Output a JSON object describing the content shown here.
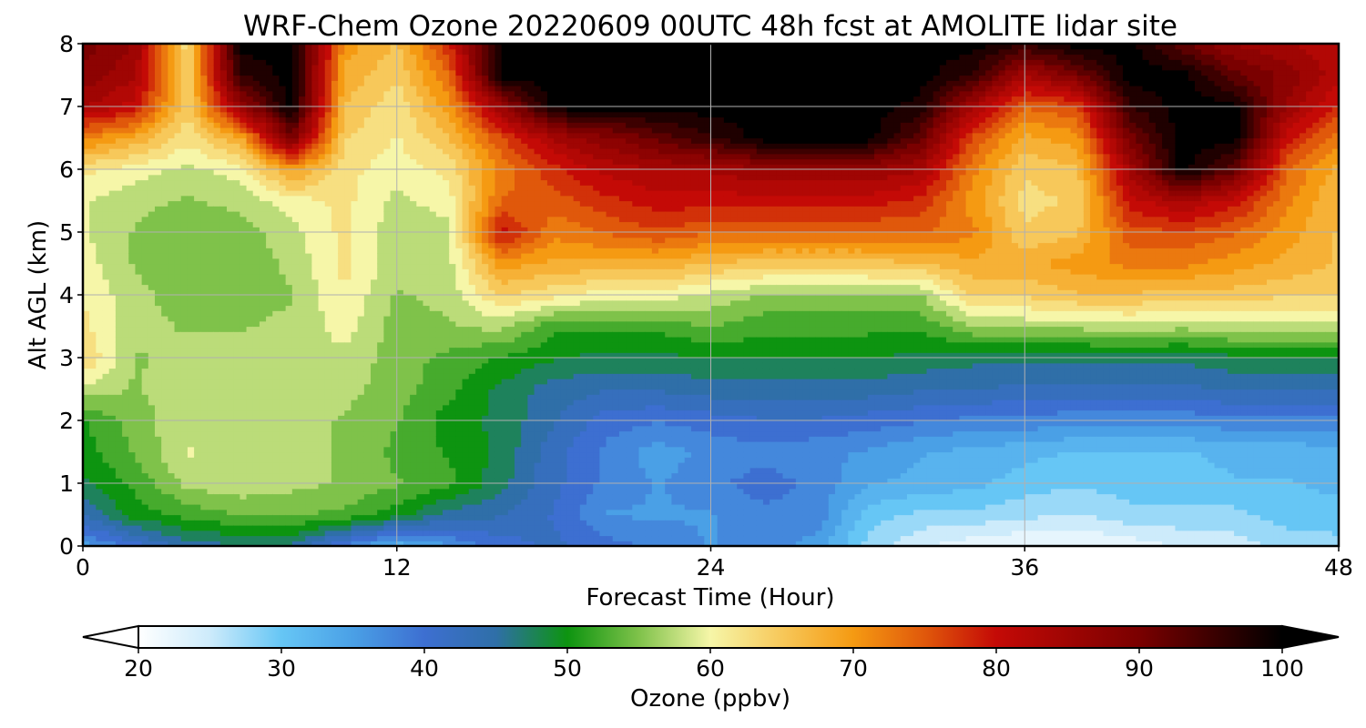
{
  "chart_data": {
    "type": "heatmap",
    "title": "WRF-Chem Ozone  20220609 00UTC 48h fcst at AMOLITE lidar site",
    "xlabel": "Forecast Time (Hour)",
    "ylabel": "Alt AGL (km)",
    "xlim": [
      0,
      48
    ],
    "ylim": [
      0,
      8
    ],
    "xticks": [
      0,
      12,
      24,
      36,
      48
    ],
    "yticks": [
      0,
      1,
      2,
      3,
      4,
      5,
      6,
      7,
      8
    ],
    "grid": true,
    "colorbar": {
      "label": "Ozone  (ppbv)",
      "range": [
        20,
        100
      ],
      "ticks": [
        20,
        30,
        40,
        50,
        60,
        70,
        80,
        90,
        100
      ],
      "extend": "both",
      "stops": [
        [
          20,
          "#ffffff"
        ],
        [
          25,
          "#cdebfb"
        ],
        [
          30,
          "#66c6f5"
        ],
        [
          35,
          "#4aa0e6"
        ],
        [
          40,
          "#3d6fd1"
        ],
        [
          45,
          "#2f6fa8"
        ],
        [
          50,
          "#0d9410"
        ],
        [
          55,
          "#7fc24a"
        ],
        [
          60,
          "#f6f6a8"
        ],
        [
          65,
          "#f7c85a"
        ],
        [
          70,
          "#f59a12"
        ],
        [
          75,
          "#e0580b"
        ],
        [
          80,
          "#c40a06"
        ],
        [
          90,
          "#7a0000"
        ],
        [
          100,
          "#000000"
        ]
      ]
    },
    "x_hours": [
      0,
      2,
      4,
      6,
      8,
      10,
      12,
      14,
      16,
      18,
      20,
      22,
      24,
      26,
      28,
      30,
      32,
      34,
      36,
      38,
      40,
      42,
      44,
      46,
      48
    ],
    "z_km": [
      0,
      0.5,
      1,
      1.5,
      2,
      2.5,
      3,
      3.5,
      4,
      4.5,
      5,
      5.5,
      6,
      6.5,
      7,
      7.5,
      8
    ],
    "ozone_ppbv": [
      [
        35,
        40,
        45,
        46,
        46,
        38,
        32,
        36,
        40,
        42,
        40,
        38,
        36,
        38,
        35,
        28,
        24,
        22,
        21,
        21,
        22,
        24,
        25,
        27,
        28
      ],
      [
        44,
        50,
        52,
        54,
        54,
        53,
        50,
        45,
        44,
        41,
        36,
        36,
        36,
        38,
        38,
        30,
        28,
        28,
        27,
        26,
        28,
        28,
        28,
        30,
        30
      ],
      [
        48,
        52,
        57,
        58,
        57,
        56,
        54,
        52,
        47,
        42,
        38,
        36,
        38,
        40,
        38,
        34,
        33,
        32,
        30,
        29,
        30,
        30,
        31,
        31,
        32
      ],
      [
        50,
        54,
        59,
        58,
        57,
        56,
        53,
        51,
        48,
        42,
        38,
        35,
        37,
        38,
        37,
        36,
        34,
        33,
        32,
        31,
        31,
        31,
        32,
        32,
        33
      ],
      [
        51,
        55,
        58,
        58,
        57,
        56,
        54,
        50,
        48,
        44,
        40,
        39,
        40,
        41,
        41,
        40,
        39,
        38,
        38,
        37,
        37,
        37,
        38,
        38,
        38
      ],
      [
        58,
        56,
        58,
        58,
        57,
        57,
        55,
        52,
        48,
        45,
        44,
        44,
        45,
        45,
        45,
        45,
        44,
        44,
        43,
        43,
        43,
        43,
        44,
        44,
        44
      ],
      [
        64,
        56,
        57,
        57,
        57,
        58,
        55,
        53,
        51,
        49,
        48,
        48,
        49,
        49,
        49,
        49,
        48,
        47,
        47,
        47,
        47,
        47,
        48,
        48,
        48
      ],
      [
        62,
        57,
        56,
        56,
        57,
        60,
        55,
        56,
        57,
        52,
        52,
        52,
        54,
        52,
        52,
        52,
        52,
        56,
        57,
        57,
        58,
        57,
        58,
        58,
        58
      ],
      [
        61,
        57,
        55,
        55,
        56,
        61,
        56,
        57,
        64,
        62,
        60,
        60,
        58,
        56,
        56,
        56,
        56,
        64,
        64,
        66,
        66,
        65,
        65,
        64,
        64
      ],
      [
        60,
        56,
        54,
        54,
        57,
        62,
        57,
        58,
        70,
        68,
        68,
        68,
        66,
        65,
        65,
        65,
        66,
        68,
        68,
        70,
        72,
        72,
        70,
        68,
        66
      ],
      [
        59,
        56,
        54,
        55,
        58,
        62,
        57,
        58,
        80,
        72,
        74,
        76,
        74,
        74,
        74,
        74,
        74,
        72,
        64,
        66,
        75,
        76,
        74,
        70,
        66
      ],
      [
        59,
        57,
        56,
        57,
        60,
        62,
        58,
        60,
        74,
        75,
        78,
        80,
        80,
        80,
        80,
        80,
        78,
        70,
        63,
        64,
        80,
        84,
        80,
        72,
        66
      ],
      [
        62,
        60,
        58,
        60,
        70,
        62,
        60,
        62,
        72,
        78,
        82,
        84,
        84,
        86,
        86,
        86,
        84,
        72,
        64,
        66,
        84,
        100,
        92,
        74,
        68
      ],
      [
        72,
        68,
        62,
        68,
        90,
        64,
        61,
        66,
        76,
        84,
        88,
        92,
        96,
        100,
        100,
        100,
        92,
        76,
        68,
        70,
        90,
        100,
        100,
        80,
        72
      ],
      [
        84,
        80,
        64,
        86,
        100,
        66,
        62,
        70,
        86,
        100,
        100,
        100,
        100,
        100,
        100,
        100,
        98,
        84,
        74,
        76,
        96,
        100,
        100,
        86,
        78
      ],
      [
        88,
        84,
        64,
        96,
        100,
        68,
        64,
        74,
        100,
        100,
        100,
        100,
        100,
        100,
        100,
        100,
        100,
        96,
        84,
        90,
        100,
        100,
        92,
        88,
        82
      ],
      [
        90,
        86,
        62,
        100,
        100,
        70,
        66,
        78,
        100,
        100,
        100,
        100,
        100,
        100,
        100,
        100,
        100,
        100,
        96,
        100,
        100,
        92,
        86,
        84,
        82
      ]
    ]
  }
}
